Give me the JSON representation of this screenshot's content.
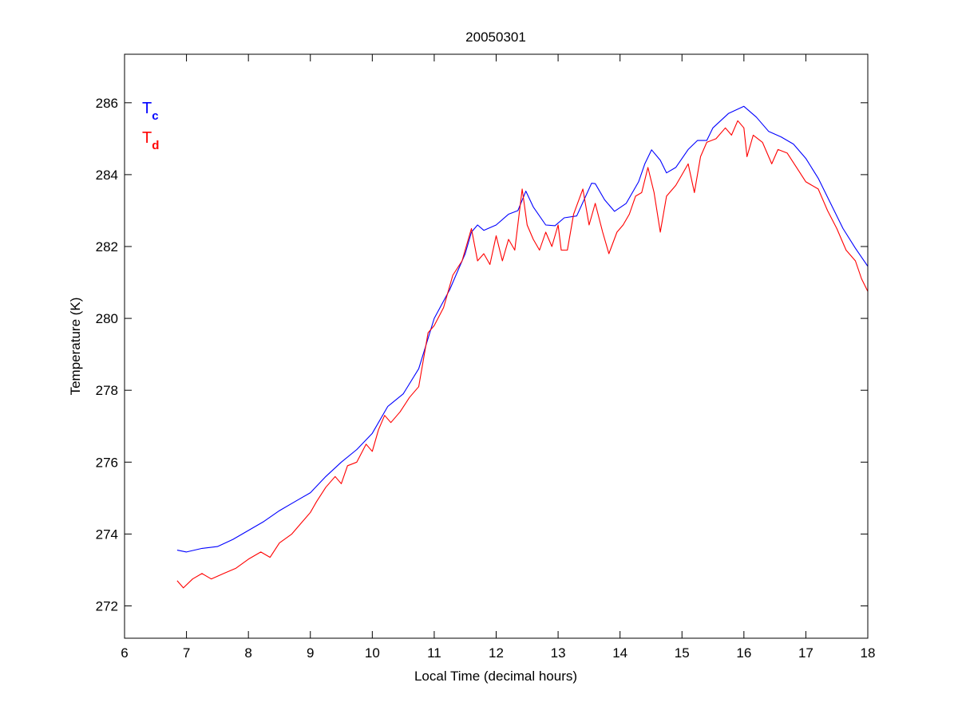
{
  "chart_data": {
    "type": "line",
    "title": "20050301",
    "xlabel": "Local Time (decimal hours)",
    "ylabel": "Temperature (K)",
    "xlim": [
      6,
      18
    ],
    "ylim": [
      271.1,
      287.35
    ],
    "xticks": [
      6,
      7,
      8,
      9,
      10,
      11,
      12,
      13,
      14,
      15,
      16,
      17,
      18
    ],
    "yticks": [
      272,
      274,
      276,
      278,
      280,
      282,
      284,
      286
    ],
    "grid": false,
    "legend": {
      "placement": "top-left",
      "entries": [
        {
          "main": "T",
          "sub": "c",
          "color": "#0000ff"
        },
        {
          "main": "T",
          "sub": "d",
          "color": "#ff0000"
        }
      ]
    },
    "series": [
      {
        "name": "Tc",
        "color": "#0000ff",
        "x": [
          6.85,
          7.0,
          7.25,
          7.5,
          7.75,
          8.0,
          8.25,
          8.5,
          8.75,
          9.0,
          9.25,
          9.5,
          9.75,
          10.0,
          10.25,
          10.5,
          10.75,
          11.0,
          11.25,
          11.5,
          11.6,
          11.7,
          11.8,
          12.0,
          12.2,
          12.35,
          12.48,
          12.6,
          12.8,
          12.95,
          13.1,
          13.3,
          13.54,
          13.6,
          13.75,
          13.91,
          14.1,
          14.3,
          14.4,
          14.51,
          14.65,
          14.75,
          14.9,
          15.1,
          15.25,
          15.4,
          15.5,
          15.75,
          16.0,
          16.2,
          16.4,
          16.6,
          16.8,
          17.0,
          17.2,
          17.4,
          17.6,
          17.8,
          18.0
        ],
        "y": [
          273.55,
          273.5,
          273.6,
          273.65,
          273.85,
          274.1,
          274.35,
          274.65,
          274.9,
          275.15,
          275.6,
          276.0,
          276.35,
          276.8,
          277.55,
          277.9,
          278.6,
          280.0,
          280.8,
          281.8,
          282.4,
          282.6,
          282.45,
          282.6,
          282.9,
          283.0,
          283.54,
          283.1,
          282.6,
          282.58,
          282.8,
          282.85,
          283.76,
          283.75,
          283.3,
          282.98,
          283.2,
          283.8,
          284.3,
          284.69,
          284.4,
          284.05,
          284.2,
          284.7,
          284.95,
          284.95,
          285.3,
          285.7,
          285.9,
          285.6,
          285.2,
          285.05,
          284.85,
          284.45,
          283.9,
          283.2,
          282.5,
          281.95,
          281.45
        ]
      },
      {
        "name": "Td",
        "color": "#ff0000",
        "x": [
          6.85,
          6.95,
          7.1,
          7.25,
          7.4,
          7.6,
          7.8,
          8.0,
          8.2,
          8.35,
          8.5,
          8.7,
          8.85,
          9.0,
          9.1,
          9.25,
          9.4,
          9.5,
          9.6,
          9.75,
          9.9,
          10.0,
          10.1,
          10.2,
          10.3,
          10.45,
          10.6,
          10.75,
          10.9,
          11.0,
          11.15,
          11.3,
          11.45,
          11.6,
          11.7,
          11.8,
          11.9,
          12.0,
          12.1,
          12.2,
          12.3,
          12.42,
          12.5,
          12.6,
          12.7,
          12.8,
          12.9,
          13.0,
          13.05,
          13.15,
          13.25,
          13.4,
          13.5,
          13.6,
          13.72,
          13.82,
          13.95,
          14.05,
          14.15,
          14.25,
          14.35,
          14.45,
          14.55,
          14.65,
          14.75,
          14.9,
          15.0,
          15.1,
          15.2,
          15.3,
          15.4,
          15.55,
          15.7,
          15.8,
          15.9,
          16.0,
          16.05,
          16.15,
          16.3,
          16.45,
          16.55,
          16.7,
          16.85,
          17.0,
          17.2,
          17.35,
          17.5,
          17.65,
          17.8,
          17.9,
          18.0
        ],
        "y": [
          272.7,
          272.5,
          272.75,
          272.9,
          272.75,
          272.9,
          273.05,
          273.3,
          273.5,
          273.35,
          273.75,
          274.0,
          274.3,
          274.6,
          274.9,
          275.3,
          275.6,
          275.4,
          275.9,
          276.0,
          276.5,
          276.3,
          276.9,
          277.3,
          277.1,
          277.4,
          277.8,
          278.1,
          279.6,
          279.8,
          280.3,
          281.2,
          281.6,
          282.5,
          281.6,
          281.8,
          281.5,
          282.3,
          281.6,
          282.2,
          281.9,
          283.6,
          282.6,
          282.2,
          281.9,
          282.4,
          282.0,
          282.6,
          281.9,
          281.9,
          282.9,
          283.6,
          282.6,
          283.2,
          282.4,
          281.8,
          282.4,
          282.6,
          282.9,
          283.4,
          283.5,
          284.2,
          283.5,
          282.4,
          283.4,
          283.7,
          284.0,
          284.3,
          283.5,
          284.5,
          284.9,
          285.0,
          285.3,
          285.1,
          285.5,
          285.3,
          284.5,
          285.1,
          284.9,
          284.3,
          284.7,
          284.6,
          284.2,
          283.8,
          283.6,
          283.0,
          282.5,
          281.9,
          281.6,
          281.1,
          280.75
        ]
      }
    ]
  }
}
